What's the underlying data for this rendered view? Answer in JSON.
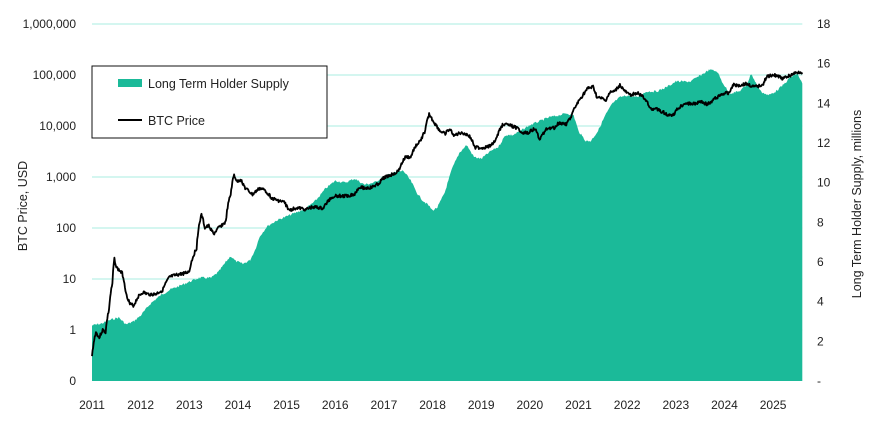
{
  "chart_data": {
    "type": "area+line",
    "title": "",
    "xlabel": "",
    "x_ticks": [
      "2011",
      "2012",
      "2013",
      "2014",
      "2015",
      "2016",
      "2017",
      "2018",
      "2019",
      "2020",
      "2021",
      "2022",
      "2023",
      "2024",
      "2025"
    ],
    "x_range": [
      2011.0,
      2025.6
    ],
    "left_axis": {
      "label": "BTC Price, USD",
      "scale": "log",
      "ticks": [
        "1,000,000",
        "100,000",
        "10,000",
        "1,000",
        "100",
        "10",
        "1",
        "0"
      ],
      "tick_values": [
        1000000,
        100000,
        10000,
        1000,
        100,
        10,
        1,
        0.1
      ],
      "range": [
        0.1,
        1000000
      ]
    },
    "right_axis": {
      "label": "Long Term Holder Supply, millions",
      "scale": "linear",
      "ticks": [
        "18",
        "16",
        "14",
        "12",
        "10",
        "8",
        "6",
        "4",
        "2",
        "-"
      ],
      "tick_values": [
        18,
        16,
        14,
        12,
        10,
        8,
        6,
        4,
        2,
        0
      ],
      "range": [
        0,
        18
      ]
    },
    "grid": "horizontal, left axis",
    "legend": {
      "position": "top-left",
      "entries": [
        {
          "label": "Long Term Holder Supply",
          "type": "area",
          "color": "#1bba99"
        },
        {
          "label": "BTC Price",
          "type": "line",
          "color": "#000000"
        }
      ]
    },
    "colors": {
      "area": "#1bba99",
      "line": "#000000",
      "grid": "#a8ece0"
    },
    "series": [
      {
        "name": "Long Term Holder Supply",
        "axis": "right",
        "unit": "millions BTC",
        "points": [
          [
            2011.0,
            2.8
          ],
          [
            2011.2,
            2.9
          ],
          [
            2011.4,
            3.1
          ],
          [
            2011.55,
            3.2
          ],
          [
            2011.7,
            2.85
          ],
          [
            2011.85,
            3.0
          ],
          [
            2012.0,
            3.3
          ],
          [
            2012.2,
            3.9
          ],
          [
            2012.4,
            4.3
          ],
          [
            2012.6,
            4.6
          ],
          [
            2012.8,
            4.8
          ],
          [
            2013.0,
            5.0
          ],
          [
            2013.2,
            5.2
          ],
          [
            2013.45,
            5.2
          ],
          [
            2013.6,
            5.5
          ],
          [
            2013.75,
            6.0
          ],
          [
            2013.85,
            6.3
          ],
          [
            2013.95,
            6.05
          ],
          [
            2014.1,
            5.9
          ],
          [
            2014.25,
            6.1
          ],
          [
            2014.35,
            6.6
          ],
          [
            2014.45,
            7.3
          ],
          [
            2014.6,
            7.8
          ],
          [
            2014.8,
            8.1
          ],
          [
            2015.0,
            8.3
          ],
          [
            2015.2,
            8.5
          ],
          [
            2015.4,
            8.7
          ],
          [
            2015.6,
            9.1
          ],
          [
            2015.8,
            9.7
          ],
          [
            2016.0,
            10.1
          ],
          [
            2016.2,
            10.0
          ],
          [
            2016.4,
            10.2
          ],
          [
            2016.6,
            9.9
          ],
          [
            2016.8,
            10.0
          ],
          [
            2017.0,
            10.3
          ],
          [
            2017.2,
            10.5
          ],
          [
            2017.4,
            10.6
          ],
          [
            2017.55,
            10.1
          ],
          [
            2017.7,
            9.4
          ],
          [
            2017.8,
            9.1
          ],
          [
            2017.9,
            8.9
          ],
          [
            2018.0,
            8.6
          ],
          [
            2018.1,
            8.75
          ],
          [
            2018.25,
            9.5
          ],
          [
            2018.4,
            10.7
          ],
          [
            2018.55,
            11.5
          ],
          [
            2018.7,
            11.9
          ],
          [
            2018.85,
            11.3
          ],
          [
            2019.0,
            11.2
          ],
          [
            2019.2,
            11.6
          ],
          [
            2019.35,
            11.8
          ],
          [
            2019.5,
            12.4
          ],
          [
            2019.65,
            12.4
          ],
          [
            2019.8,
            12.6
          ],
          [
            2020.0,
            12.9
          ],
          [
            2020.2,
            13.1
          ],
          [
            2020.4,
            13.3
          ],
          [
            2020.6,
            13.4
          ],
          [
            2020.75,
            13.5
          ],
          [
            2020.9,
            13.4
          ],
          [
            2021.0,
            12.6
          ],
          [
            2021.15,
            12.1
          ],
          [
            2021.25,
            12.1
          ],
          [
            2021.4,
            12.6
          ],
          [
            2021.55,
            13.4
          ],
          [
            2021.7,
            14.0
          ],
          [
            2021.85,
            14.3
          ],
          [
            2022.0,
            14.4
          ],
          [
            2022.2,
            14.3
          ],
          [
            2022.4,
            14.6
          ],
          [
            2022.6,
            14.6
          ],
          [
            2022.8,
            14.8
          ],
          [
            2023.0,
            15.1
          ],
          [
            2023.15,
            15.1
          ],
          [
            2023.3,
            15.1
          ],
          [
            2023.5,
            15.4
          ],
          [
            2023.7,
            15.7
          ],
          [
            2023.85,
            15.6
          ],
          [
            2023.95,
            15.1
          ],
          [
            2024.1,
            14.5
          ],
          [
            2024.3,
            14.6
          ],
          [
            2024.45,
            14.9
          ],
          [
            2024.55,
            15.5
          ],
          [
            2024.65,
            15.0
          ],
          [
            2024.75,
            14.6
          ],
          [
            2024.9,
            14.4
          ],
          [
            2025.05,
            14.6
          ],
          [
            2025.2,
            14.9
          ],
          [
            2025.35,
            15.3
          ],
          [
            2025.5,
            15.5
          ],
          [
            2025.6,
            15.0
          ]
        ]
      },
      {
        "name": "BTC Price",
        "axis": "left",
        "unit": "USD",
        "points": [
          [
            2011.0,
            0.3
          ],
          [
            2011.08,
            0.9
          ],
          [
            2011.15,
            0.7
          ],
          [
            2011.22,
            1.0
          ],
          [
            2011.28,
            0.9
          ],
          [
            2011.35,
            2.5
          ],
          [
            2011.42,
            8
          ],
          [
            2011.46,
            25
          ],
          [
            2011.5,
            17
          ],
          [
            2011.55,
            15
          ],
          [
            2011.62,
            13
          ],
          [
            2011.7,
            5
          ],
          [
            2011.78,
            3.2
          ],
          [
            2011.86,
            3
          ],
          [
            2011.95,
            4.5
          ],
          [
            2012.05,
            5.5
          ],
          [
            2012.15,
            5
          ],
          [
            2012.3,
            5
          ],
          [
            2012.45,
            6
          ],
          [
            2012.6,
            11
          ],
          [
            2012.75,
            12
          ],
          [
            2012.9,
            13
          ],
          [
            2013.0,
            14
          ],
          [
            2013.15,
            40
          ],
          [
            2013.25,
            180
          ],
          [
            2013.32,
            100
          ],
          [
            2013.4,
            110
          ],
          [
            2013.5,
            75
          ],
          [
            2013.6,
            100
          ],
          [
            2013.75,
            130
          ],
          [
            2013.85,
            450
          ],
          [
            2013.92,
            1100
          ],
          [
            2013.98,
            800
          ],
          [
            2014.05,
            900
          ],
          [
            2014.15,
            600
          ],
          [
            2014.3,
            450
          ],
          [
            2014.45,
            600
          ],
          [
            2014.55,
            550
          ],
          [
            2014.7,
            380
          ],
          [
            2014.8,
            350
          ],
          [
            2014.95,
            320
          ],
          [
            2015.05,
            220
          ],
          [
            2015.2,
            250
          ],
          [
            2015.4,
            230
          ],
          [
            2015.55,
            260
          ],
          [
            2015.75,
            240
          ],
          [
            2015.9,
            380
          ],
          [
            2016.0,
            430
          ],
          [
            2016.2,
            420
          ],
          [
            2016.4,
            460
          ],
          [
            2016.5,
            650
          ],
          [
            2016.6,
            600
          ],
          [
            2016.75,
            620
          ],
          [
            2016.9,
            750
          ],
          [
            2017.0,
            970
          ],
          [
            2017.15,
            1100
          ],
          [
            2017.3,
            1300
          ],
          [
            2017.45,
            2500
          ],
          [
            2017.55,
            2400
          ],
          [
            2017.65,
            4000
          ],
          [
            2017.75,
            5000
          ],
          [
            2017.85,
            8000
          ],
          [
            2017.93,
            17000
          ],
          [
            2017.98,
            14000
          ],
          [
            2018.05,
            11000
          ],
          [
            2018.15,
            8000
          ],
          [
            2018.25,
            7000
          ],
          [
            2018.35,
            8500
          ],
          [
            2018.45,
            6500
          ],
          [
            2018.6,
            7500
          ],
          [
            2018.75,
            6400
          ],
          [
            2018.88,
            3800
          ],
          [
            2019.0,
            3700
          ],
          [
            2019.15,
            3900
          ],
          [
            2019.3,
            5200
          ],
          [
            2019.45,
            11000
          ],
          [
            2019.55,
            10500
          ],
          [
            2019.7,
            9500
          ],
          [
            2019.85,
            7500
          ],
          [
            2019.95,
            7200
          ],
          [
            2020.1,
            9000
          ],
          [
            2020.2,
            5300
          ],
          [
            2020.35,
            9000
          ],
          [
            2020.5,
            9200
          ],
          [
            2020.6,
            11500
          ],
          [
            2020.75,
            11000
          ],
          [
            2020.85,
            15000
          ],
          [
            2020.95,
            25000
          ],
          [
            2021.05,
            35000
          ],
          [
            2021.2,
            55000
          ],
          [
            2021.3,
            58000
          ],
          [
            2021.38,
            36000
          ],
          [
            2021.5,
            34000
          ],
          [
            2021.55,
            31000
          ],
          [
            2021.65,
            45000
          ],
          [
            2021.75,
            48000
          ],
          [
            2021.85,
            63000
          ],
          [
            2021.95,
            48000
          ],
          [
            2022.05,
            40000
          ],
          [
            2022.2,
            45000
          ],
          [
            2022.3,
            39000
          ],
          [
            2022.42,
            29000
          ],
          [
            2022.5,
            20000
          ],
          [
            2022.6,
            22000
          ],
          [
            2022.7,
            19500
          ],
          [
            2022.85,
            16500
          ],
          [
            2022.95,
            16600
          ],
          [
            2023.05,
            22000
          ],
          [
            2023.2,
            28000
          ],
          [
            2023.35,
            27000
          ],
          [
            2023.5,
            30000
          ],
          [
            2023.65,
            26500
          ],
          [
            2023.8,
            34000
          ],
          [
            2023.95,
            42000
          ],
          [
            2024.1,
            45000
          ],
          [
            2024.18,
            65000
          ],
          [
            2024.3,
            62000
          ],
          [
            2024.45,
            67000
          ],
          [
            2024.6,
            58000
          ],
          [
            2024.7,
            60000
          ],
          [
            2024.8,
            68000
          ],
          [
            2024.88,
            95000
          ],
          [
            2025.0,
            100000
          ],
          [
            2025.1,
            95000
          ],
          [
            2025.2,
            83000
          ],
          [
            2025.3,
            94000
          ],
          [
            2025.45,
            108000
          ],
          [
            2025.55,
            115000
          ],
          [
            2025.6,
            112000
          ]
        ]
      }
    ]
  }
}
